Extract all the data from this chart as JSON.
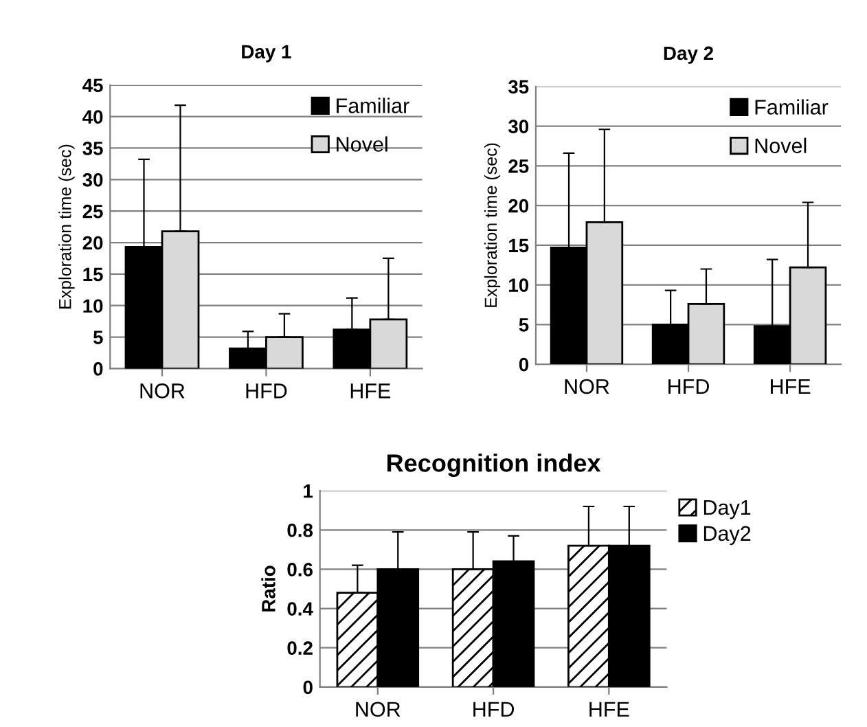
{
  "chart_data": [
    {
      "type": "bar",
      "title": "Day 1",
      "ylabel": "Exploration time (sec)",
      "categories": [
        "NOR",
        "HFD",
        "HFE"
      ],
      "ylim": [
        0,
        45
      ],
      "yticks": [
        0,
        5,
        10,
        15,
        20,
        25,
        30,
        35,
        40,
        45
      ],
      "grid": "y",
      "legend": "top right",
      "series": [
        {
          "name": "Familiar",
          "color": "#000000",
          "values": [
            19.3,
            3.2,
            6.2
          ],
          "errors": [
            [
              19.3,
              33.2
            ],
            [
              3.2,
              5.9
            ],
            [
              6.2,
              11.2
            ]
          ]
        },
        {
          "name": "Novel",
          "color": "#d9d9d9",
          "values": [
            21.8,
            5.0,
            7.8
          ],
          "errors": [
            [
              21.8,
              41.8
            ],
            [
              5.0,
              8.7
            ],
            [
              7.8,
              17.5
            ]
          ]
        }
      ]
    },
    {
      "type": "bar",
      "title": "Day 2",
      "ylabel": "Exploration time (sec)",
      "categories": [
        "NOR",
        "HFD",
        "HFE"
      ],
      "ylim": [
        0,
        35
      ],
      "yticks": [
        0,
        5,
        10,
        15,
        20,
        25,
        30,
        35
      ],
      "grid": "y",
      "legend": "top right",
      "series": [
        {
          "name": "Familiar",
          "color": "#000000",
          "values": [
            14.7,
            5.0,
            4.8
          ],
          "errors": [
            [
              14.7,
              26.6
            ],
            [
              5.0,
              9.3
            ],
            [
              4.8,
              13.2
            ]
          ]
        },
        {
          "name": "Novel",
          "color": "#d9d9d9",
          "values": [
            17.9,
            7.6,
            12.2
          ],
          "errors": [
            [
              17.9,
              29.6
            ],
            [
              7.6,
              12.0
            ],
            [
              12.2,
              20.4
            ]
          ]
        }
      ]
    },
    {
      "type": "bar",
      "title": "Recognition index",
      "ylabel": "Ratio",
      "categories": [
        "NOR",
        "HFD",
        "HFE"
      ],
      "ylim": [
        0,
        1
      ],
      "yticks": [
        0,
        0.2,
        0.4,
        0.6,
        0.8,
        1
      ],
      "grid": "y",
      "legend": "right",
      "series": [
        {
          "name": "Day1",
          "color": "#000000",
          "values": [
            0.48,
            0.6,
            0.72
          ],
          "errors": [
            [
              0.48,
              0.62
            ],
            [
              0.6,
              0.79
            ],
            [
              0.72,
              0.92
            ]
          ]
        },
        {
          "name": "Day2",
          "color": "#000000",
          "values": [
            0.6,
            0.64,
            0.72
          ],
          "errors": [
            [
              0.6,
              0.79
            ],
            [
              0.64,
              0.77
            ],
            [
              0.72,
              0.92
            ]
          ]
        }
      ]
    }
  ]
}
